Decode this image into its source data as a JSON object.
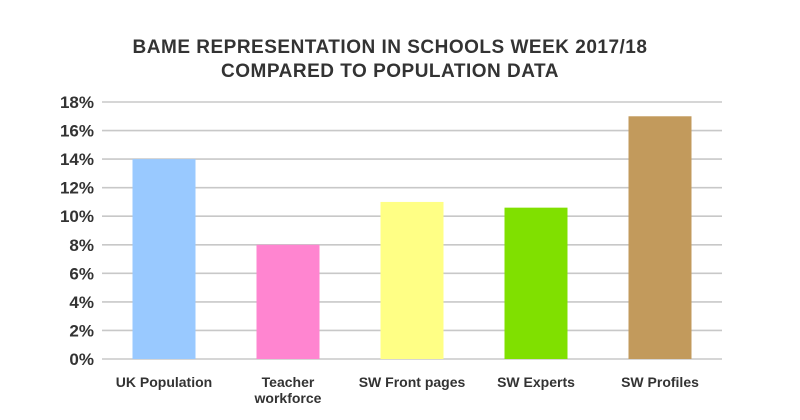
{
  "chart_data": {
    "type": "bar",
    "title_lines": [
      "BAME REPRESENTATION IN SCHOOLS WEEK 2017/18",
      "COMPARED TO POPULATION DATA"
    ],
    "categories": [
      [
        "UK Population"
      ],
      [
        "Teacher",
        "workforce"
      ],
      [
        "SW Front pages"
      ],
      [
        "SW Experts"
      ],
      [
        "SW Profiles"
      ]
    ],
    "values": [
      14,
      8,
      11,
      10.6,
      17
    ],
    "colors": [
      "#99c9ff",
      "#ff85d0",
      "#ffff85",
      "#80e000",
      "#c29a5c"
    ],
    "y_ticks": [
      "0%",
      "2%",
      "4%",
      "6%",
      "8%",
      "10%",
      "12%",
      "14%",
      "16%",
      "18%"
    ],
    "y_tick_values": [
      0,
      2,
      4,
      6,
      8,
      10,
      12,
      14,
      16,
      18
    ],
    "ylim": [
      0,
      18
    ],
    "grid": true,
    "legend": "none"
  }
}
